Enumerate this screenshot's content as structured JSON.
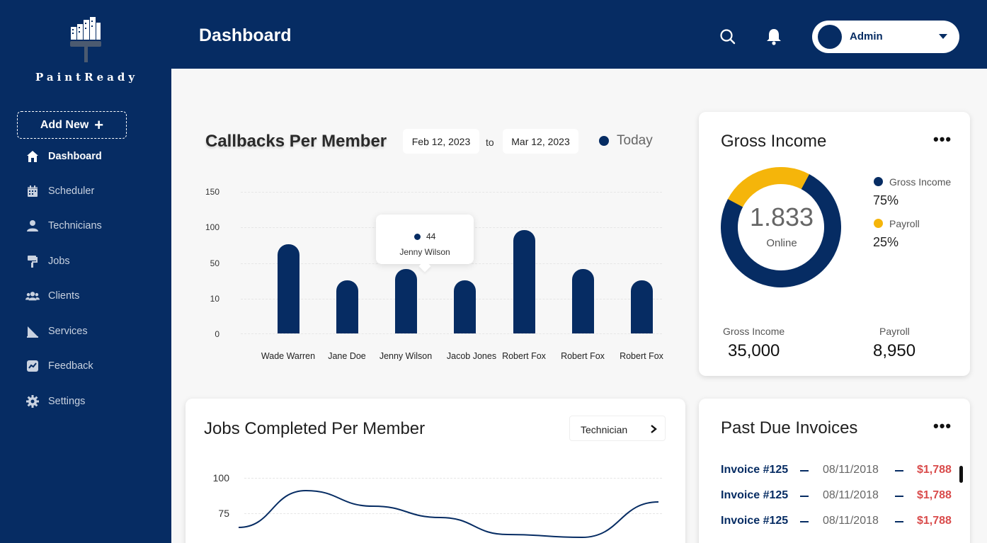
{
  "app": {
    "brand": "PaintReady"
  },
  "sidebar": {
    "add_new_label": "Add New",
    "items": [
      {
        "label": "Dashboard",
        "icon": "home-icon"
      },
      {
        "label": "Scheduler",
        "icon": "calendar-icon"
      },
      {
        "label": "Technicians",
        "icon": "user-icon"
      },
      {
        "label": "Jobs",
        "icon": "paint-roller-icon"
      },
      {
        "label": "Clients",
        "icon": "users-icon"
      },
      {
        "label": "Services",
        "icon": "services-icon"
      },
      {
        "label": "Feedback",
        "icon": "chart-line-icon"
      },
      {
        "label": "Settings",
        "icon": "gear-icon"
      }
    ]
  },
  "header": {
    "title": "Dashboard",
    "user_name": "Admin"
  },
  "callbacks": {
    "title": "Callbacks Per Member",
    "date_from": "Feb 12, 2023",
    "date_sep": "to",
    "date_to": "Mar 12, 2023",
    "legend_label": "Today",
    "tooltip": {
      "value": "44",
      "name": "Jenny Wilson"
    }
  },
  "gross_income": {
    "title": "Gross Income",
    "center_value": "1.833",
    "center_label": "Online",
    "legend": [
      {
        "name": "Gross Income",
        "percent": "75%",
        "color": "#062c63"
      },
      {
        "name": "Payroll",
        "percent": "25%",
        "color": "#f5b50a"
      }
    ],
    "stats": [
      {
        "label": "Gross Income",
        "value": "35,000"
      },
      {
        "label": "Payroll",
        "value": "8,950"
      }
    ]
  },
  "jobs_completed": {
    "title": "Jobs Completed Per Member",
    "filter_label": "Technician",
    "y_ticks": [
      "100",
      "75"
    ]
  },
  "invoices": {
    "title": "Past Due Invoices",
    "rows": [
      {
        "name": "Invoice #125",
        "date": "08/11/2018",
        "amount": "$1,788"
      },
      {
        "name": "Invoice #125",
        "date": "08/11/2018",
        "amount": "$1,788"
      },
      {
        "name": "Invoice #125",
        "date": "08/11/2018",
        "amount": "$1,788"
      }
    ]
  },
  "chart_data": [
    {
      "type": "bar",
      "title": "Callbacks Per Member",
      "categories": [
        "Wade Warren",
        "Jane Doe",
        "Jenny Wilson",
        "Jacob Jones",
        "Robert Fox",
        "Robert Fox",
        "Robert Fox"
      ],
      "values": [
        76,
        31,
        44,
        31,
        96,
        44,
        31
      ],
      "y_ticks": [
        "150",
        "100",
        "50",
        "10",
        "0"
      ],
      "xlabel": "",
      "ylabel": "",
      "legend": [
        "Today"
      ]
    },
    {
      "type": "pie",
      "title": "Gross Income",
      "categories": [
        "Gross Income",
        "Payroll"
      ],
      "values": [
        75,
        25
      ],
      "center_text": "1.833"
    },
    {
      "type": "line",
      "title": "Jobs Completed Per Member",
      "x": [
        0,
        1,
        2,
        3,
        4,
        5,
        6
      ],
      "y": [
        65,
        91,
        80,
        72,
        60,
        58,
        83
      ],
      "y_ticks": [
        "100",
        "75"
      ],
      "ylim": [
        50,
        110
      ]
    }
  ],
  "colors": {
    "primary": "#062c63",
    "accent": "#f5b50a",
    "danger": "#d94b4b"
  }
}
